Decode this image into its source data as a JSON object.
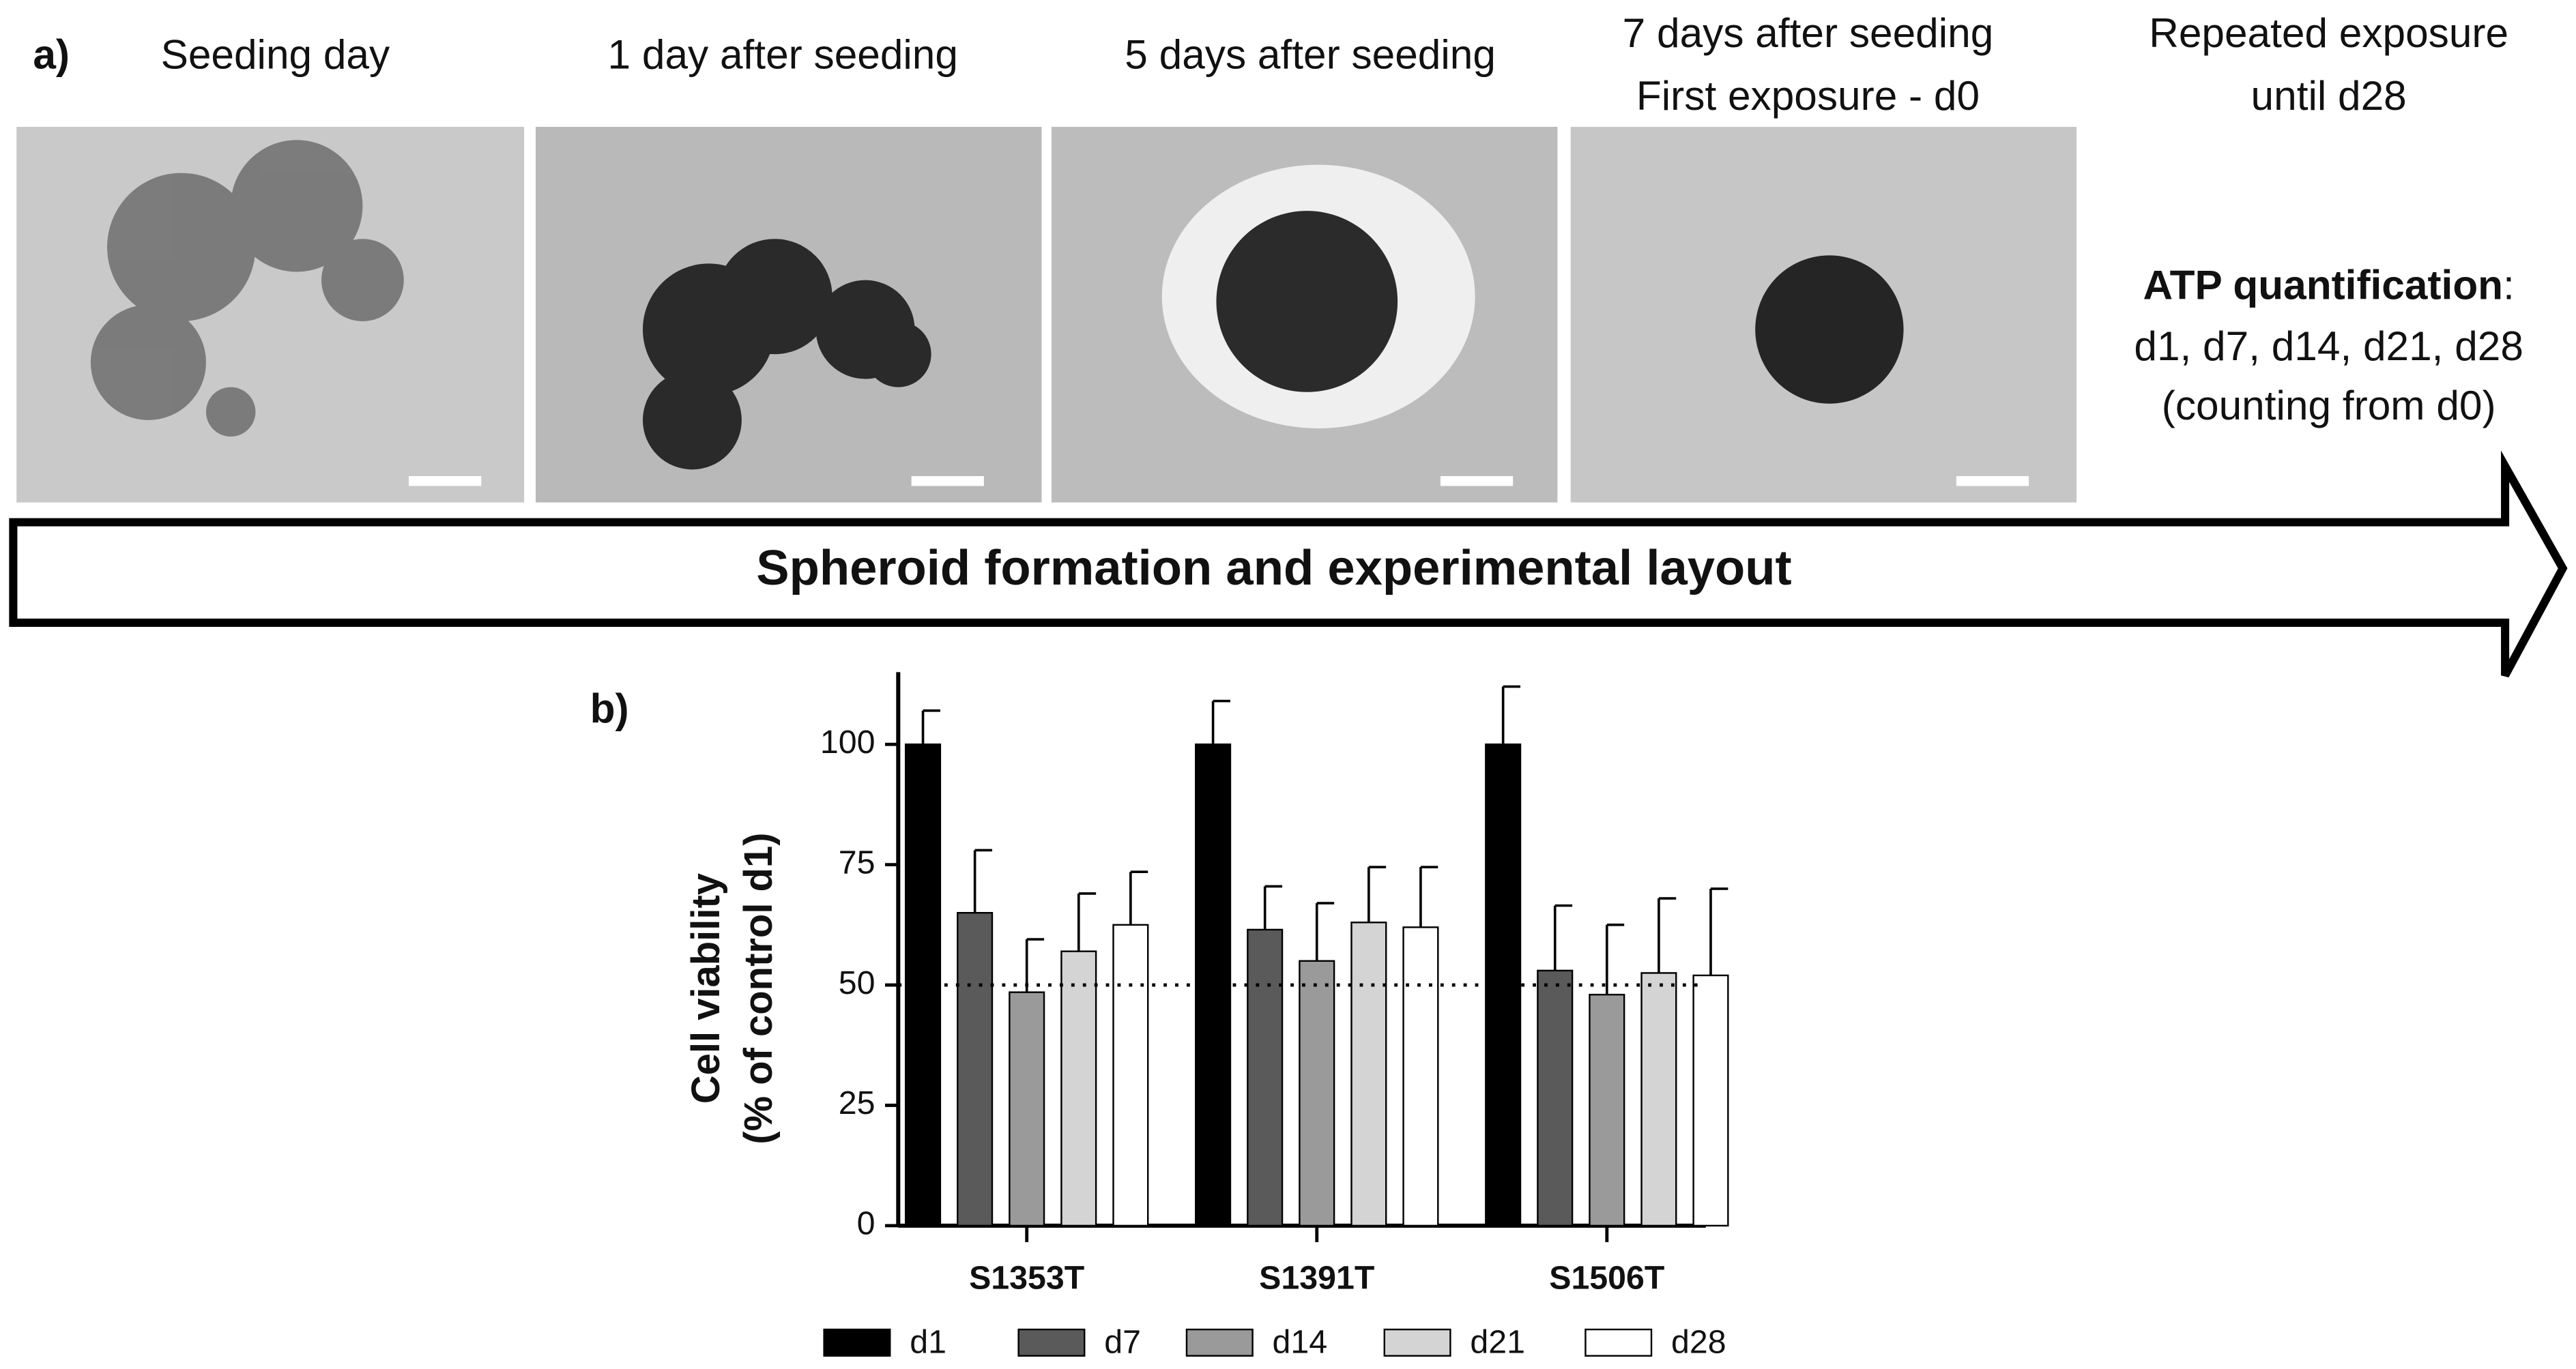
{
  "panel_a": {
    "label": "a)",
    "stages": [
      [
        "Seeding day"
      ],
      [
        "1 day after seeding"
      ],
      [
        "5 days after seeding"
      ],
      [
        "7 days after seeding",
        "First exposure - d0"
      ],
      [
        "Repeated exposure",
        "until d28"
      ]
    ],
    "atp_title": "ATP quantification",
    "atp_colon": ":",
    "atp_lines": [
      "d1, d7, d14, d21, d28",
      "(counting from d0)"
    ],
    "arrow_label": "Spheroid formation and experimental layout"
  },
  "chart_data": {
    "type": "bar",
    "panel_label": "b)",
    "y_label": [
      "Cell viability",
      "(% of control d1)"
    ],
    "categories": [
      "S1353T",
      "S1391T",
      "S1506T"
    ],
    "series": [
      {
        "name": "d1",
        "color": "#000000",
        "values": [
          100,
          100,
          100
        ],
        "errors": [
          7,
          9,
          12
        ]
      },
      {
        "name": "d7",
        "color": "#5a5a5a",
        "values": [
          65,
          61.5,
          53
        ],
        "errors": [
          13,
          9,
          13.5
        ]
      },
      {
        "name": "d14",
        "color": "#9a9a9a",
        "values": [
          48.5,
          55,
          48
        ],
        "errors": [
          11,
          12,
          14.5
        ]
      },
      {
        "name": "d21",
        "color": "#d4d4d4",
        "values": [
          57,
          63,
          52.5
        ],
        "errors": [
          12,
          11.5,
          15.5
        ]
      },
      {
        "name": "d28",
        "color": "#ffffff",
        "values": [
          62.5,
          62,
          52
        ],
        "errors": [
          11,
          12.5,
          18
        ]
      }
    ],
    "ylim": [
      0,
      115
    ],
    "yticks": [
      0,
      25,
      50,
      75,
      100
    ],
    "reference_line": 50
  }
}
